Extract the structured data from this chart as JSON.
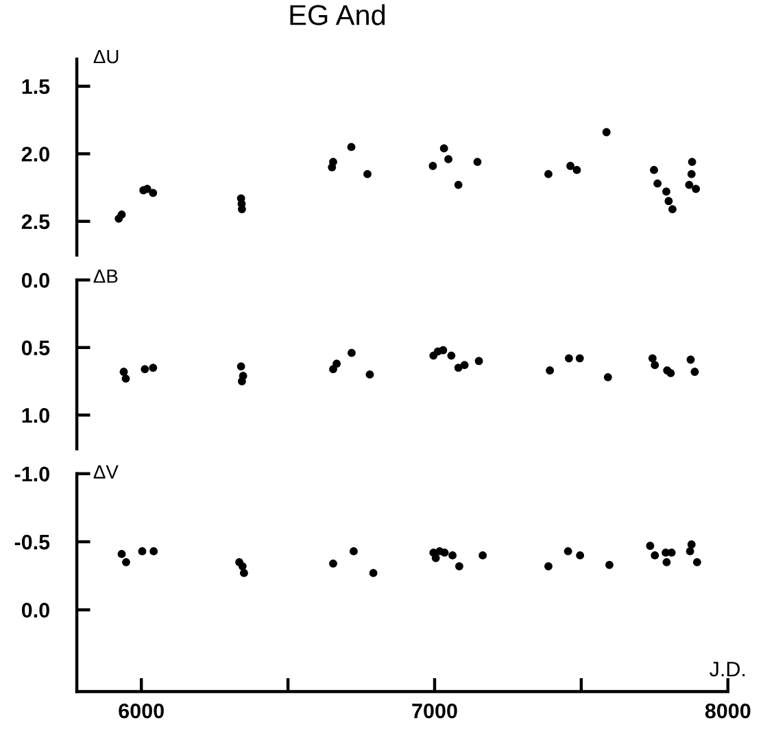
{
  "chart_data": [
    {
      "type": "scatter",
      "title": "EG And",
      "ylabel": "ΔU",
      "marker": "circle",
      "tick_labels": "y",
      "xlim": [
        5780,
        8000
      ],
      "ylim": [
        2.75,
        1.3
      ],
      "yticks": [
        {
          "value": 1.5,
          "label": "1.5"
        },
        {
          "value": 2.0,
          "label": "2.0"
        },
        {
          "value": 2.5,
          "label": "2.5"
        }
      ],
      "series": [
        {
          "color": "#000000",
          "x": [
            5923,
            5933,
            6007,
            6020,
            6040,
            6340,
            6342,
            6343,
            6650,
            6654,
            6716,
            6771,
            6994,
            7032,
            7047,
            7081,
            7146,
            7388,
            7463,
            7485,
            7586,
            7748,
            7760,
            7790,
            7798,
            7811,
            7878,
            7876,
            7868,
            7891
          ],
          "values": [
            2.48,
            2.45,
            2.27,
            2.26,
            2.29,
            2.33,
            2.37,
            2.41,
            2.1,
            2.06,
            1.95,
            2.15,
            2.09,
            1.96,
            2.04,
            2.23,
            2.06,
            2.15,
            2.09,
            2.12,
            1.84,
            2.12,
            2.22,
            2.28,
            2.35,
            2.41,
            2.06,
            2.15,
            2.23,
            2.26
          ]
        }
      ]
    },
    {
      "type": "scatter",
      "ylabel": "ΔB",
      "marker": "circle",
      "tick_labels": "y",
      "xlim": [
        5780,
        8000
      ],
      "ylim": [
        1.25,
        0.0
      ],
      "yticks": [
        {
          "value": 0.0,
          "label": "0.0"
        },
        {
          "value": 0.5,
          "label": "0.5"
        },
        {
          "value": 1.0,
          "label": "1.0"
        }
      ],
      "series": [
        {
          "color": "#000000",
          "x": [
            5940,
            5947,
            6012,
            6040,
            6340,
            6347,
            6343,
            6654,
            6666,
            6717,
            6779,
            6996,
            7011,
            7029,
            7057,
            7081,
            7102,
            7151,
            7393,
            7458,
            7495,
            7591,
            7743,
            7751,
            7793,
            7805,
            7873,
            7887
          ],
          "values": [
            0.68,
            0.73,
            0.66,
            0.65,
            0.64,
            0.71,
            0.75,
            0.66,
            0.62,
            0.54,
            0.7,
            0.56,
            0.53,
            0.52,
            0.56,
            0.65,
            0.63,
            0.6,
            0.67,
            0.58,
            0.58,
            0.72,
            0.58,
            0.63,
            0.67,
            0.69,
            0.59,
            0.68
          ]
        }
      ]
    },
    {
      "type": "scatter",
      "ylabel": "ΔV",
      "xlabel": "J.D.",
      "marker": "circle",
      "xlim": [
        5780,
        8000
      ],
      "ylim": [
        0.6,
        -1.0
      ],
      "xticks": [
        6000,
        {
          "value": 6500,
          "label": null
        },
        7000,
        {
          "value": 7500,
          "label": null
        },
        8000
      ],
      "yticks": [
        {
          "value": -1.0,
          "label": "-1.0"
        },
        {
          "value": -0.5,
          "label": "-0.5"
        },
        {
          "value": 0.0,
          "label": "0.0"
        }
      ],
      "series": [
        {
          "color": "#000000",
          "x": [
            5933,
            5948,
            6003,
            6042,
            6334,
            6345,
            6350,
            6654,
            6724,
            6791,
            6996,
            7004,
            7017,
            7034,
            7061,
            7084,
            7164,
            7388,
            7455,
            7496,
            7596,
            7735,
            7751,
            7788,
            7791,
            7808,
            7876,
            7871,
            7895
          ],
          "values": [
            -0.41,
            -0.35,
            -0.43,
            -0.43,
            -0.35,
            -0.32,
            -0.27,
            -0.34,
            -0.43,
            -0.27,
            -0.42,
            -0.38,
            -0.43,
            -0.42,
            -0.4,
            -0.32,
            -0.4,
            -0.32,
            -0.43,
            -0.4,
            -0.33,
            -0.47,
            -0.4,
            -0.42,
            -0.35,
            -0.42,
            -0.48,
            -0.43,
            -0.35
          ]
        }
      ]
    }
  ]
}
